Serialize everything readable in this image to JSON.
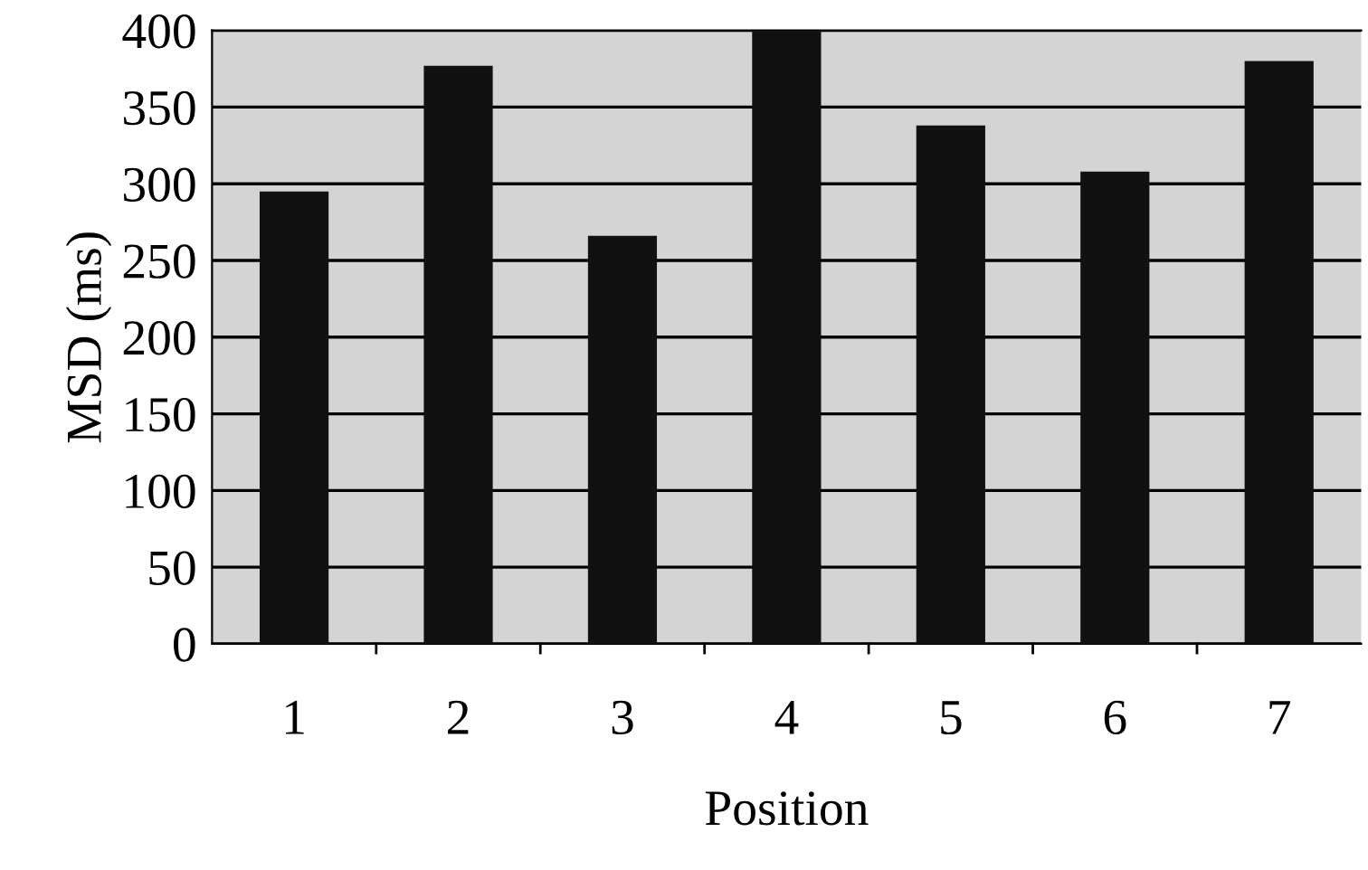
{
  "chart_data": {
    "type": "bar",
    "xlabel": "Position",
    "ylabel": "MSD (ms)",
    "categories": [
      "1",
      "2",
      "3",
      "4",
      "5",
      "6",
      "7"
    ],
    "values": [
      295,
      377,
      266,
      400,
      338,
      308,
      380
    ],
    "color": "#111111",
    "ylim": [
      0,
      400
    ],
    "yticks": [
      0,
      50,
      100,
      150,
      200,
      250,
      300,
      350,
      400
    ],
    "grid": "y"
  }
}
